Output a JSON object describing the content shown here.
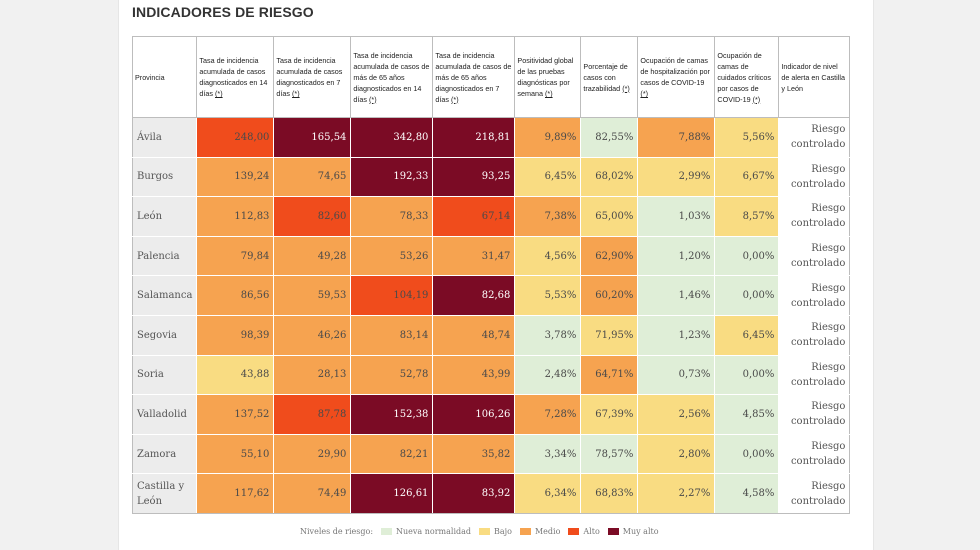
{
  "title": "INDICADORES DE RIESGO",
  "headers": [
    "Provincia",
    "Tasa de incidencia acumulada de casos diagnosticados en 14 días",
    "Tasa de incidencia acumulada de casos diagnosticados en 7 días",
    "Tasa de incidencia acumulada de casos de más de 65 años diagnosticados en 14 días",
    "Tasa de incidencia acumulada de casos de más de 65 años diagnosticados en 7 días",
    "Positividad global de las pruebas diagnósticas por semana",
    "Porcentaje de casos con trazabilidad",
    "Ocupación de camas de hospitalización por casos de COVID-19",
    "Ocupación de camas de cuidados críticos por casos de COVID-19",
    "Indicador de nivel de alerta en Castilla y León"
  ],
  "footnote_mark": "(*)",
  "rows": [
    {
      "province": "Ávila",
      "values": [
        "248,00",
        "165,54",
        "342,80",
        "218,81",
        "9,89%",
        "82,55%",
        "7,88%",
        "5,56%"
      ],
      "levels": [
        "a",
        "ma",
        "ma",
        "ma",
        "m",
        "nn",
        "m",
        "b"
      ],
      "alert": "Riesgo controlado"
    },
    {
      "province": "Burgos",
      "values": [
        "139,24",
        "74,65",
        "192,33",
        "93,25",
        "6,45%",
        "68,02%",
        "2,99%",
        "6,67%"
      ],
      "levels": [
        "m",
        "m",
        "ma",
        "ma",
        "b",
        "b",
        "b",
        "b"
      ],
      "alert": "Riesgo controlado"
    },
    {
      "province": "León",
      "values": [
        "112,83",
        "82,60",
        "78,33",
        "67,14",
        "7,38%",
        "65,00%",
        "1,03%",
        "8,57%"
      ],
      "levels": [
        "m",
        "a",
        "m",
        "a",
        "m",
        "b",
        "nn",
        "b"
      ],
      "alert": "Riesgo controlado"
    },
    {
      "province": "Palencia",
      "values": [
        "79,84",
        "49,28",
        "53,26",
        "31,47",
        "4,56%",
        "62,90%",
        "1,20%",
        "0,00%"
      ],
      "levels": [
        "m",
        "m",
        "m",
        "m",
        "b",
        "m",
        "nn",
        "nn"
      ],
      "alert": "Riesgo controlado"
    },
    {
      "province": "Salamanca",
      "values": [
        "86,56",
        "59,53",
        "104,19",
        "82,68",
        "5,53%",
        "60,20%",
        "1,46%",
        "0,00%"
      ],
      "levels": [
        "m",
        "m",
        "a",
        "ma",
        "b",
        "m",
        "nn",
        "nn"
      ],
      "alert": "Riesgo controlado"
    },
    {
      "province": "Segovia",
      "values": [
        "98,39",
        "46,26",
        "83,14",
        "48,74",
        "3,78%",
        "71,95%",
        "1,23%",
        "6,45%"
      ],
      "levels": [
        "m",
        "m",
        "m",
        "m",
        "nn",
        "b",
        "nn",
        "b"
      ],
      "alert": "Riesgo controlado"
    },
    {
      "province": "Soria",
      "values": [
        "43,88",
        "28,13",
        "52,78",
        "43,99",
        "2,48%",
        "64,71%",
        "0,73%",
        "0,00%"
      ],
      "levels": [
        "b",
        "m",
        "m",
        "m",
        "nn",
        "m",
        "nn",
        "nn"
      ],
      "alert": "Riesgo controlado"
    },
    {
      "province": "Valladolid",
      "values": [
        "137,52",
        "87,78",
        "152,38",
        "106,26",
        "7,28%",
        "67,39%",
        "2,56%",
        "4,85%"
      ],
      "levels": [
        "m",
        "a",
        "ma",
        "ma",
        "m",
        "b",
        "b",
        "nn"
      ],
      "alert": "Riesgo controlado"
    },
    {
      "province": "Zamora",
      "values": [
        "55,10",
        "29,90",
        "82,21",
        "35,82",
        "3,34%",
        "78,57%",
        "2,80%",
        "0,00%"
      ],
      "levels": [
        "m",
        "m",
        "m",
        "m",
        "nn",
        "nn",
        "b",
        "nn"
      ],
      "alert": "Riesgo controlado"
    },
    {
      "province": "Castilla y León",
      "values": [
        "117,62",
        "74,49",
        "126,61",
        "83,92",
        "6,34%",
        "68,83%",
        "2,27%",
        "4,58%"
      ],
      "levels": [
        "m",
        "m",
        "ma",
        "ma",
        "b",
        "b",
        "b",
        "nn"
      ],
      "alert": "Riesgo controlado"
    }
  ],
  "legend": {
    "label": "Niveles de riesgo:",
    "items": [
      {
        "key": "nn",
        "label": "Nueva normalidad",
        "color": "#dfeed7"
      },
      {
        "key": "b",
        "label": "Bajo",
        "color": "#f9dc82"
      },
      {
        "key": "m",
        "label": "Medio",
        "color": "#f6a350"
      },
      {
        "key": "a",
        "label": "Alto",
        "color": "#f04c1c"
      },
      {
        "key": "ma",
        "label": "Muy alto",
        "color": "#7b0b25"
      }
    ]
  }
}
